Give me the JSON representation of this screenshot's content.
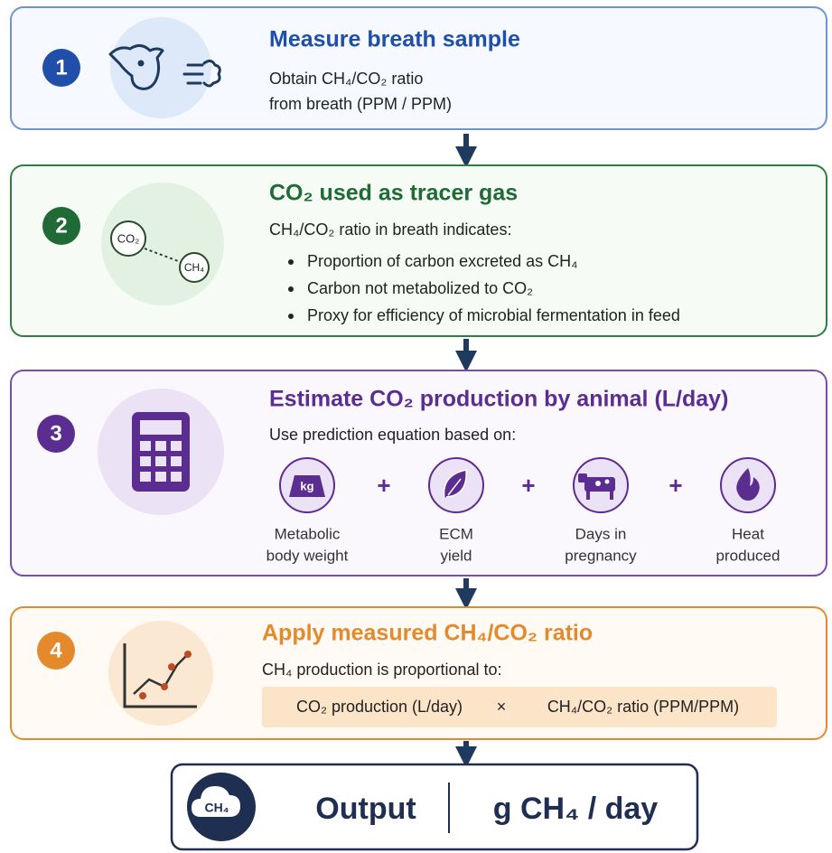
{
  "steps": [
    {
      "number": "1",
      "title": "Measure breath sample",
      "description": [
        "Obtain CH₄/CO₂ ratio",
        "from breath (PPM / PPM)"
      ]
    },
    {
      "number": "2",
      "title": "CO₂ used as tracer gas",
      "icon_labels": [
        "CO₂",
        "CH₄"
      ],
      "intro": "CH₄/CO₂ ratio in breath indicates:",
      "bullets": [
        "Proportion of carbon excreted as CH₄",
        "Carbon not metabolized to CO₂",
        "Proxy for efficiency of microbial fermentation in feed"
      ]
    },
    {
      "number": "3",
      "title": "Estimate CO₂ production by animal (L/day)",
      "intro": "Use prediction equation based on:",
      "operator": "+",
      "factors": [
        {
          "icon_label": "kg",
          "label": [
            "Metabolic",
            "body weight"
          ]
        },
        {
          "label": [
            "ECM",
            "yield"
          ]
        },
        {
          "label": [
            "Days in",
            "pregnancy"
          ]
        },
        {
          "label": [
            "Heat",
            "produced"
          ]
        }
      ]
    },
    {
      "number": "4",
      "title": "Apply measured CH₄/CO₂ ratio",
      "intro": "CH₄ production is proportional to:",
      "formula": {
        "left": "CO₂ production (L/day)",
        "operator": "×",
        "right": "CH₄/CO₂ ratio (PPM/PPM)"
      }
    }
  ],
  "output": {
    "icon_label": "CH₄",
    "label": "Output",
    "unit": "g CH₄ / day"
  }
}
